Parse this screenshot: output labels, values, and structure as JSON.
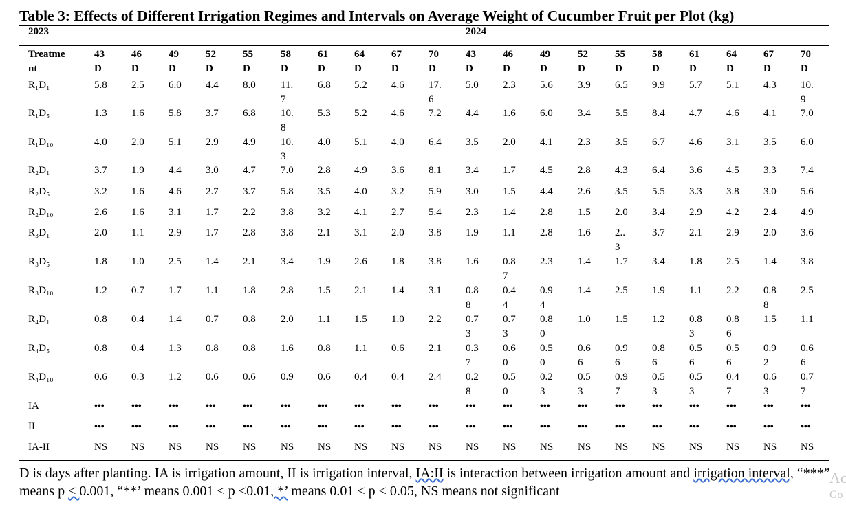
{
  "title": "Table 3: Effects of Different Irrigation Regimes and Intervals on Average Weight of Cucumber Fruit per Plot (kg)",
  "years": [
    "2023",
    "2024"
  ],
  "header_first": "Treatme\nnt",
  "columns": [
    "43\nD",
    "46\nD",
    "49\nD",
    "52\nD",
    "55\nD",
    "58\nD",
    "61\nD",
    "64\nD",
    "67\nD",
    "70\nD",
    "43\nD",
    "46\nD",
    "49\nD",
    "52\nD",
    "55\nD",
    "58\nD",
    "61\nD",
    "64\nD",
    "67\nD",
    "70\nD"
  ],
  "rows": [
    {
      "label": "R₁D₁",
      "values": [
        "5.8",
        "2.5",
        "6.0",
        "4.4",
        "8.0",
        "11.\n7",
        "6.8",
        "5.2",
        "4.6",
        "17.\n6",
        "5.0",
        "2.3",
        "5.6",
        "3.9",
        "6.5",
        "9.9",
        "5.7",
        "5.1",
        "4.3",
        "10.\n9"
      ]
    },
    {
      "label": "R₁D₅",
      "values": [
        "1.3",
        "1.6",
        "5.8",
        "3.7",
        "6.8",
        "10.\n8",
        "5.3",
        "5.2",
        "4.6",
        "7.2",
        "4.4",
        "1.6",
        "6.0",
        "3.4",
        "5.5",
        "8.4",
        "4.7",
        "4.6",
        "4.1",
        "7.0"
      ]
    },
    {
      "label": "R₁D₁₀",
      "values": [
        "4.0",
        "2.0",
        "5.1",
        "2.9",
        "4.9",
        "10.\n3",
        "4.0",
        "5.1",
        "4.0",
        "6.4",
        "3.5",
        "2.0",
        "4.1",
        "2.3",
        "3.5",
        "6.7",
        "4.6",
        "3.1",
        "3.5",
        "6.0"
      ]
    },
    {
      "label": "R₂D₁",
      "values": [
        "3.7",
        "1.9",
        "4.4",
        "3.0",
        "4.7",
        "7.0",
        "2.8",
        "4.9",
        "3.6",
        "8.1",
        "3.4",
        "1.7",
        "4.5",
        "2.8",
        "4.3",
        "6.4",
        "3.6",
        "4.5",
        "3.3",
        "7.4"
      ]
    },
    {
      "label": "R₂D₅",
      "values": [
        "3.2",
        "1.6",
        "4.6",
        "2.7",
        "3.7",
        "5.8",
        "3.5",
        "4.0",
        "3.2",
        "5.9",
        "3.0",
        "1.5",
        "4.4",
        "2.6",
        "3.5",
        "5.5",
        "3.3",
        "3.8",
        "3.0",
        "5.6"
      ]
    },
    {
      "label": "R₂D₁₀",
      "values": [
        "2.6",
        "1.6",
        "3.1",
        "1.7",
        "2.2",
        "3.8",
        "3.2",
        "4.1",
        "2.7",
        "5.4",
        "2.3",
        "1.4",
        "2.8",
        "1.5",
        "2.0",
        "3.4",
        "2.9",
        "4.2",
        "2.4",
        "4.9"
      ]
    },
    {
      "label": "R₃D₁",
      "values": [
        "2.0",
        "1.1",
        "2.9",
        "1.7",
        "2.8",
        "3.8",
        "2.1",
        "3.1",
        "2.0",
        "3.8",
        "1.9",
        "1.1",
        "2.8",
        "1.6",
        "2..\n3",
        "3.7",
        "2.1",
        "2.9",
        "2.0",
        "3.6"
      ]
    },
    {
      "label": "R₃D₅",
      "values": [
        "1.8",
        "1.0",
        "2.5",
        "1.4",
        "2.1",
        "3.4",
        "1.9",
        "2.6",
        "1.8",
        "3.8",
        "1.6",
        "0.8\n7",
        "2.3",
        "1.4",
        "1.7",
        "3.4",
        "1.8",
        "2.5",
        "1.4",
        "3.8"
      ]
    },
    {
      "label": "R₃D₁₀",
      "values": [
        "1.2",
        "0.7",
        "1.7",
        "1.1",
        "1.8",
        "2.8",
        "1.5",
        "2.1",
        "1.4",
        "3.1",
        "0.8\n8",
        "0.4\n4",
        "0.9\n4",
        "1.4",
        "2.5",
        "1.9",
        "1.1",
        "2.2",
        "0.8\n8",
        "2.5"
      ]
    },
    {
      "label": "R₄D₁",
      "values": [
        "0.8",
        "0.4",
        "1.4",
        "0.7",
        "0.8",
        "2.0",
        "1.1",
        "1.5",
        "1.0",
        "2.2",
        "0.7\n3",
        "0.7\n3",
        "0.8\n0",
        "1.0",
        "1.5",
        "1.2",
        "0.8\n3",
        "0.8\n6",
        "1.5",
        "1.1"
      ]
    },
    {
      "label": "R₄D₅",
      "values": [
        "0.8",
        "0.4",
        "1.3",
        "0.8",
        "0.8",
        "1.6",
        "0.8",
        "1.1",
        "0.6",
        "2.1",
        "0.3\n7",
        "0.6\n0",
        "0.5\n0",
        "0.6\n6",
        "0.9\n6",
        "0.8\n6",
        "0.5\n6",
        "0.5\n6",
        "0.9\n2",
        "0.6\n6"
      ]
    },
    {
      "label": "R₄D₁₀",
      "values": [
        "0.6",
        "0.3",
        "1.2",
        "0.6",
        "0.6",
        "0.9",
        "0.6",
        "0.4",
        "0.4",
        "2.4",
        "0.2\n8",
        "0.5\n0",
        "0.2\n3",
        "0.5\n3",
        "0.9\n7",
        "0.5\n3",
        "0.5\n3",
        "0.4\n7",
        "0.6\n3",
        "0.7\n7"
      ]
    },
    {
      "label": "IA",
      "values": [
        "•••",
        "•••",
        "•••",
        "•••",
        "•••",
        "•••",
        "•••",
        "•••",
        "•••",
        "•••",
        "•••",
        "•••",
        "•••",
        "•••",
        "•••",
        "•••",
        "•••",
        "•••",
        "•••",
        "•••"
      ]
    },
    {
      "label": "II",
      "values": [
        "•••",
        "•••",
        "•••",
        "•••",
        "•••",
        "•••",
        "•••",
        "•••",
        "•••",
        "•••",
        "•••",
        "•••",
        "•••",
        "•••",
        "•••",
        "•••",
        "•••",
        "•••",
        "•••",
        "•••"
      ]
    },
    {
      "label": "IA-II",
      "values": [
        "NS",
        "NS",
        "NS",
        "NS",
        "NS",
        "NS",
        "NS",
        "NS",
        "NS",
        "NS",
        "NS",
        "NS",
        "NS",
        "NS",
        "NS",
        "NS",
        "NS",
        "NS",
        "NS",
        "NS"
      ]
    }
  ],
  "footnote": {
    "p1": "D is days after planting. IA is irrigation amount, II is irrigation interval, ",
    "p2": "IA:II",
    "p3": " is interaction between irrigation amount and ",
    "p4": "irrigation interval,",
    "p5": " “***” means p ",
    "p6": "< ",
    "p7": "0.001, “**’",
    "p8": "  means 0.001 < p <0.01",
    "p9": ", *’",
    "p10": " means 0.01 < p < 0.05, NS means not significant"
  },
  "edge_text": [
    "Ac",
    "Go"
  ]
}
